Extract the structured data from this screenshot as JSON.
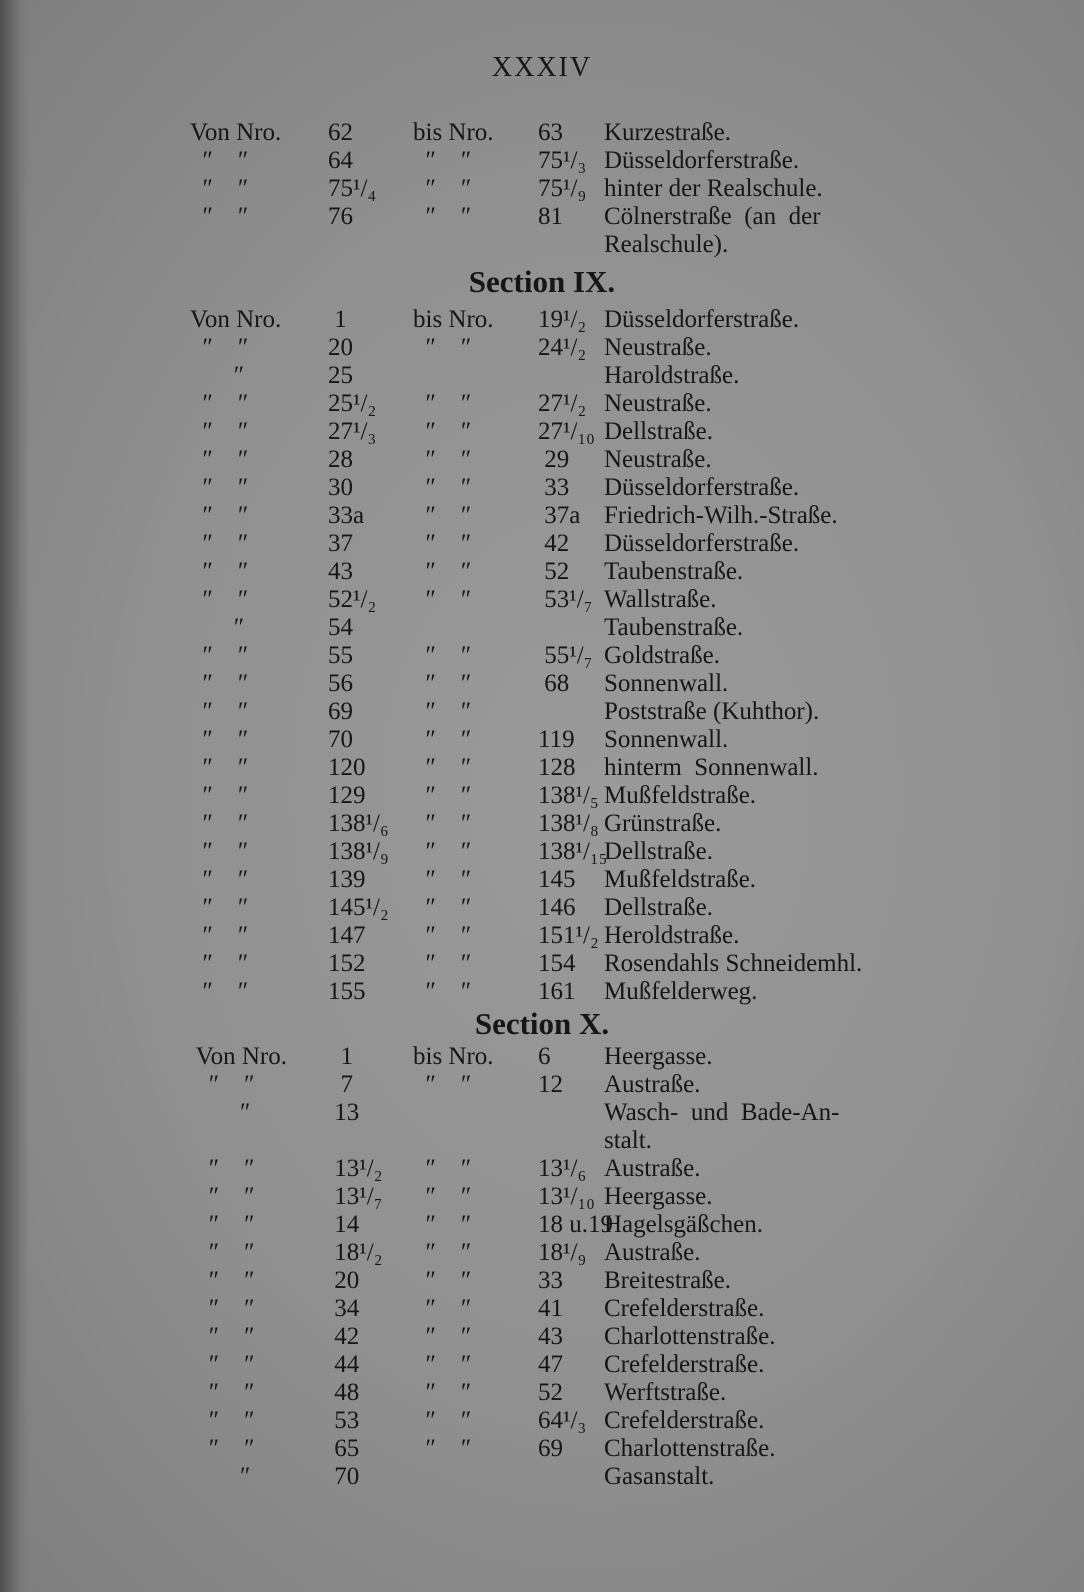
{
  "page_number": "XXXIV",
  "sections": [
    {
      "heading": "",
      "rows": [
        {
          "von": "Von Nro.",
          "from": "62",
          "bis": "bis Nro.",
          "to": "63",
          "street": "Kurzestraße."
        },
        {
          "von": "  ″    ″",
          "from": "64",
          "bis": "  ″    ″",
          "to": "75¹/₃",
          "street": "Düsseldorferstraße."
        },
        {
          "von": "  ″    ″",
          "from": "75¹/₄",
          "bis": "  ″    ″",
          "to": "75¹/₉",
          "street": "hinter der Realschule."
        },
        {
          "von": "  ″    ″",
          "from": "76",
          "bis": "  ″    ″",
          "to": "81",
          "street": "Cölnerstraße  (an  der"
        },
        {
          "von": "",
          "from": "",
          "bis": "",
          "to": "",
          "street": "Realschule)."
        }
      ]
    },
    {
      "heading": "Section IX.",
      "rows": [
        {
          "von": "Von Nro.",
          "from": " 1",
          "bis": "bis Nro.",
          "to": "19¹/₂",
          "street": "Düsseldorferstraße."
        },
        {
          "von": "  ″    ″",
          "from": "20",
          "bis": "  ″    ″",
          "to": "24¹/₂",
          "street": "Neustraße."
        },
        {
          "von": "       ″",
          "from": "25",
          "bis": "",
          "to": "",
          "street": "Haroldstraße."
        },
        {
          "von": "  ″    ″",
          "from": "25¹/₂",
          "bis": "  ″    ″",
          "to": "27¹/₂",
          "street": "Neustraße."
        },
        {
          "von": "  ″    ″",
          "from": "27¹/₃",
          "bis": "  ″    ″",
          "to": "27¹/₁₀",
          "street": "Dellstraße."
        },
        {
          "von": "  ″    ″",
          "from": "28",
          "bis": "  ″    ″",
          "to": " 29",
          "street": "Neustraße."
        },
        {
          "von": "  ″    ″",
          "from": "30",
          "bis": "  ″    ″",
          "to": " 33",
          "street": "Düsseldorferstraße."
        },
        {
          "von": "  ″    ″",
          "from": "33a",
          "bis": "  ″    ″",
          "to": " 37a",
          "street": "Friedrich-Wilh.-Straße."
        },
        {
          "von": "  ″    ″",
          "from": "37",
          "bis": "  ″    ″",
          "to": " 42",
          "street": "Düsseldorferstraße."
        },
        {
          "von": "  ″    ″",
          "from": "43",
          "bis": "  ″    ″",
          "to": " 52",
          "street": "Taubenstraße."
        },
        {
          "von": "  ″    ″",
          "from": "52¹/₂",
          "bis": "  ″    ″",
          "to": " 53¹/₇",
          "street": "Wallstraße."
        },
        {
          "von": "       ″",
          "from": "54",
          "bis": "",
          "to": "",
          "street": "Taubenstraße."
        },
        {
          "von": "  ″    ″",
          "from": "55",
          "bis": "  ″    ″",
          "to": " 55¹/₇",
          "street": "Goldstraße."
        },
        {
          "von": "  ″    ″",
          "from": "56",
          "bis": "  ″    ″",
          "to": " 68",
          "street": "Sonnenwall."
        },
        {
          "von": "  ″    ″",
          "from": "69",
          "bis": "  ″    ″",
          "to": "",
          "street": "Poststraße (Kuhthor)."
        },
        {
          "von": "  ″    ″",
          "from": "70",
          "bis": "  ″    ″",
          "to": "119",
          "street": "Sonnenwall."
        },
        {
          "von": "  ″    ″",
          "from": "120",
          "bis": "  ″    ″",
          "to": "128",
          "street": "hinterm  Sonnenwall."
        },
        {
          "von": "  ″    ″",
          "from": "129",
          "bis": "  ″    ″",
          "to": "138¹/₅",
          "street": "Mußfeldstraße."
        },
        {
          "von": "  ″    ″",
          "from": "138¹/₆",
          "bis": "  ″    ″",
          "to": "138¹/₈",
          "street": "Grünstraße."
        },
        {
          "von": "  ″    ″",
          "from": "138¹/₉",
          "bis": "  ″    ″",
          "to": "138¹/₁₅",
          "street": "Dellstraße."
        },
        {
          "von": "  ″    ″",
          "from": "139",
          "bis": "  ″    ″",
          "to": "145",
          "street": "Mußfeldstraße."
        },
        {
          "von": "  ″    ″",
          "from": "145¹/₂",
          "bis": "  ″    ″",
          "to": "146",
          "street": "Dellstraße."
        },
        {
          "von": "  ″    ″",
          "from": "147",
          "bis": "  ″    ″",
          "to": "151¹/₂",
          "street": "Heroldstraße."
        },
        {
          "von": "  ″    ″",
          "from": "152",
          "bis": "  ″    ″",
          "to": "154",
          "street": "Rosendahls Schneidemhl."
        },
        {
          "von": "  ″    ″",
          "from": "155",
          "bis": "  ″    ″",
          "to": "161",
          "street": "Mußfelderweg."
        }
      ]
    },
    {
      "heading": "Section X.",
      "rows": [
        {
          "von": " Von Nro.",
          "from": "  1",
          "bis": "bis Nro.",
          "to": "6",
          "street": "Heergasse."
        },
        {
          "von": "   ″    ″",
          "from": "  7",
          "bis": "  ″    ″",
          "to": "12",
          "street": "Austraße."
        },
        {
          "von": "        ″",
          "from": " 13",
          "bis": "",
          "to": "",
          "street": "Wasch-  und  Bade-An-"
        },
        {
          "von": "",
          "from": "",
          "bis": "",
          "to": "",
          "street": "stalt."
        },
        {
          "von": "   ″    ″",
          "from": " 13¹/₂",
          "bis": "  ″    ″",
          "to": "13¹/₆",
          "street": "Austraße."
        },
        {
          "von": "   ″    ″",
          "from": " 13¹/₇",
          "bis": "  ″    ″",
          "to": "13¹/₁₀",
          "street": "Heergasse."
        },
        {
          "von": "   ″    ″",
          "from": " 14",
          "bis": "  ″    ″",
          "to": "18 u.19",
          "street": "Hagelsgäßchen."
        },
        {
          "von": "   ″    ″",
          "from": " 18¹/₂",
          "bis": "  ″    ″",
          "to": "18¹/₉",
          "street": "Austraße."
        },
        {
          "von": "   ″    ″",
          "from": " 20",
          "bis": "  ″    ″",
          "to": "33",
          "street": "Breitestraße."
        },
        {
          "von": "   ″    ″",
          "from": " 34",
          "bis": "  ″    ″",
          "to": "41",
          "street": "Crefelderstraße."
        },
        {
          "von": "   ″    ″",
          "from": " 42",
          "bis": "  ″    ″",
          "to": "43",
          "street": "Charlottenstraße."
        },
        {
          "von": "   ″    ″",
          "from": " 44",
          "bis": "  ″    ″",
          "to": "47",
          "street": "Crefelderstraße."
        },
        {
          "von": "   ″    ″",
          "from": " 48",
          "bis": "  ″    ″",
          "to": "52",
          "street": "Werftstraße."
        },
        {
          "von": "   ″    ″",
          "from": " 53",
          "bis": "  ″    ″",
          "to": "64¹/₃",
          "street": "Crefelderstraße."
        },
        {
          "von": "   ″    ″",
          "from": " 65",
          "bis": "  ″    ″",
          "to": "69",
          "street": "Charlottenstraße."
        },
        {
          "von": "        ″",
          "from": " 70",
          "bis": "",
          "to": "",
          "street": "Gasanstalt."
        }
      ]
    }
  ]
}
